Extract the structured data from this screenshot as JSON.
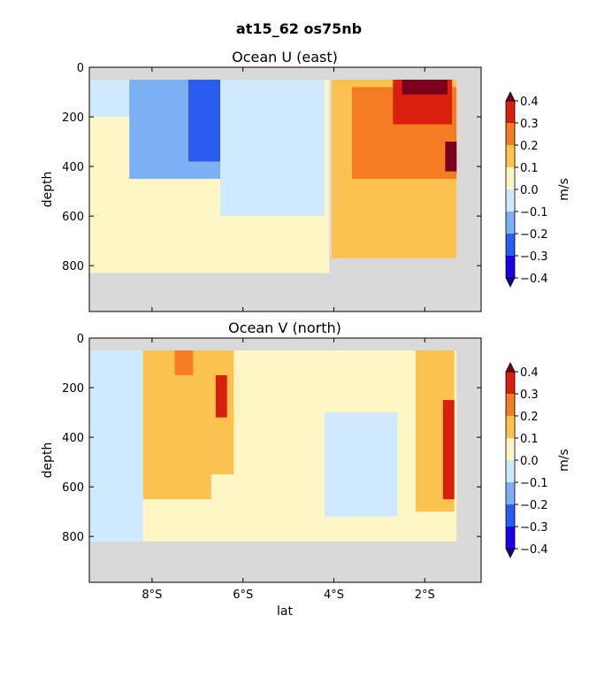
{
  "figure": {
    "title": "at15_62 os75nb"
  },
  "chart_data": [
    {
      "type": "heatmap",
      "title": "Ocean U (east)",
      "xlabel": "",
      "ylabel": "depth",
      "x_range_lat": [
        -9.38,
        -0.76
      ],
      "y_range_depth": [
        0,
        985
      ],
      "y_inverted": true,
      "x_ticks": [
        -8,
        -6,
        -4,
        -2
      ],
      "x_tick_labels": [],
      "y_ticks": [
        0,
        200,
        400,
        600,
        800
      ],
      "y_tick_labels": [
        "0",
        "200",
        "400",
        "600",
        "800"
      ],
      "colorbar": {
        "label": "m/s",
        "levels": [
          -0.4,
          -0.3,
          -0.2,
          -0.1,
          0.0,
          0.1,
          0.2,
          0.3,
          0.4
        ],
        "tick_labels": [
          "0.4",
          "0.3",
          "0.2",
          "0.1",
          "0.0",
          "−0.1",
          "−0.2",
          "−0.3",
          "−0.4"
        ],
        "colors": [
          "#1a00e8",
          "#2a5cf0",
          "#7bb1f4",
          "#cfeaff",
          "#fff6c6",
          "#fcc24f",
          "#f47c22",
          "#d9200f"
        ],
        "extend_low": "#140090",
        "extend_high": "#7a001c"
      },
      "masked_color": "#d9d9d9",
      "regions": [
        {
          "x_range": [
            -9.38,
            -4.1
          ],
          "depth_range": [
            50,
            830
          ],
          "value": 0.0
        },
        {
          "x_range": [
            -9.38,
            -6.5
          ],
          "depth_range": [
            50,
            200
          ],
          "value": -0.1
        },
        {
          "x_range": [
            -8.5,
            -6.2
          ],
          "depth_range": [
            50,
            450
          ],
          "value": -0.15
        },
        {
          "x_range": [
            -7.2,
            -6.5
          ],
          "depth_range": [
            50,
            380
          ],
          "value": -0.3
        },
        {
          "x_range": [
            -6.5,
            -4.2
          ],
          "depth_range": [
            50,
            600
          ],
          "value": -0.05
        },
        {
          "x_range": [
            -4.05,
            -1.3
          ],
          "depth_range": [
            50,
            770
          ],
          "value": 0.15
        },
        {
          "x_range": [
            -3.6,
            -1.3
          ],
          "depth_range": [
            80,
            450
          ],
          "value": 0.25
        },
        {
          "x_range": [
            -2.7,
            -1.4
          ],
          "depth_range": [
            50,
            230
          ],
          "value": 0.35
        },
        {
          "x_range": [
            -2.5,
            -1.5
          ],
          "depth_range": [
            50,
            110
          ],
          "value": 0.45
        },
        {
          "x_range": [
            -1.55,
            -1.3
          ],
          "depth_range": [
            300,
            420
          ],
          "value": 0.45
        }
      ]
    },
    {
      "type": "heatmap",
      "title": "Ocean V (north)",
      "xlabel": "lat",
      "ylabel": "depth",
      "x_range_lat": [
        -9.38,
        -0.76
      ],
      "y_range_depth": [
        0,
        985
      ],
      "y_inverted": true,
      "x_ticks": [
        -8,
        -6,
        -4,
        -2
      ],
      "x_tick_labels": [
        "8°S",
        "6°S",
        "4°S",
        "2°S"
      ],
      "y_ticks": [
        0,
        200,
        400,
        600,
        800
      ],
      "y_tick_labels": [
        "0",
        "200",
        "400",
        "600",
        "800"
      ],
      "colorbar": {
        "label": "m/s",
        "levels": [
          -0.4,
          -0.3,
          -0.2,
          -0.1,
          0.0,
          0.1,
          0.2,
          0.3,
          0.4
        ],
        "tick_labels": [
          "0.4",
          "0.3",
          "0.2",
          "0.1",
          "0.0",
          "−0.1",
          "−0.2",
          "−0.3",
          "−0.4"
        ],
        "colors": [
          "#1a00e8",
          "#2a5cf0",
          "#7bb1f4",
          "#cfeaff",
          "#fff6c6",
          "#fcc24f",
          "#f47c22",
          "#d9200f"
        ],
        "extend_low": "#140090",
        "extend_high": "#7a001c"
      },
      "masked_color": "#d9d9d9",
      "regions": [
        {
          "x_range": [
            -9.38,
            -1.3
          ],
          "depth_range": [
            50,
            820
          ],
          "value": 0.0
        },
        {
          "x_range": [
            -9.38,
            -8.2
          ],
          "depth_range": [
            50,
            820
          ],
          "value": -0.05
        },
        {
          "x_range": [
            -8.2,
            -6.7
          ],
          "depth_range": [
            50,
            650
          ],
          "value": 0.12
        },
        {
          "x_range": [
            -7.5,
            -7.1
          ],
          "depth_range": [
            50,
            150
          ],
          "value": 0.25
        },
        {
          "x_range": [
            -6.7,
            -6.2
          ],
          "depth_range": [
            50,
            550
          ],
          "value": 0.15
        },
        {
          "x_range": [
            -6.6,
            -6.35
          ],
          "depth_range": [
            150,
            320
          ],
          "value": 0.3
        },
        {
          "x_range": [
            -4.2,
            -2.6
          ],
          "depth_range": [
            300,
            720
          ],
          "value": -0.05
        },
        {
          "x_range": [
            -2.2,
            -1.35
          ],
          "depth_range": [
            50,
            700
          ],
          "value": 0.15
        },
        {
          "x_range": [
            -1.6,
            -1.35
          ],
          "depth_range": [
            250,
            650
          ],
          "value": 0.3
        }
      ]
    }
  ]
}
